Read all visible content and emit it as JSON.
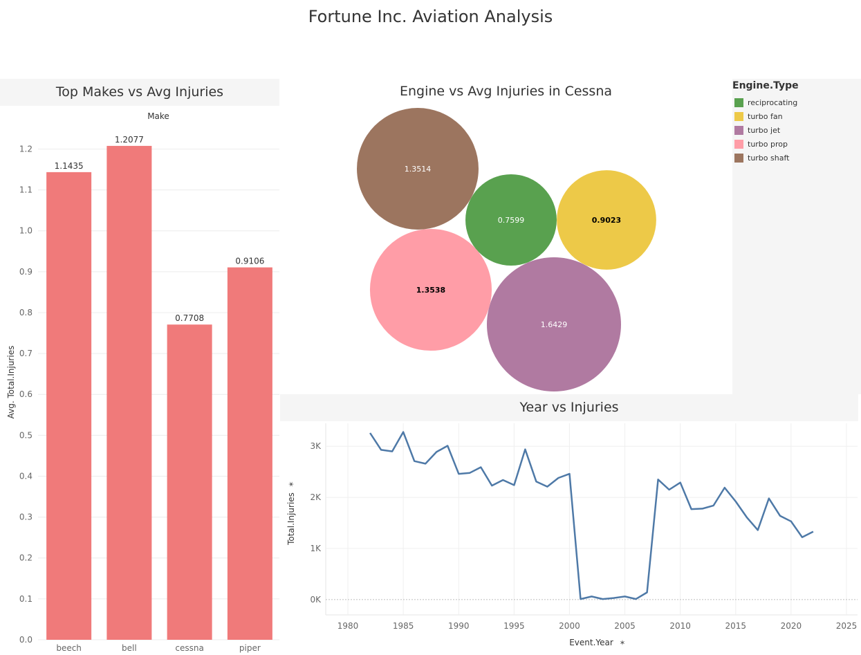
{
  "dashboard": {
    "title": "Fortune Inc. Aviation Analysis"
  },
  "chart_data": [
    {
      "type": "bar",
      "title": "Top Makes vs Avg Injuries",
      "column_header": "Make",
      "xlabel": "",
      "ylabel": "Avg. Total.Injuries",
      "categories": [
        "beech",
        "bell",
        "cessna",
        "piper"
      ],
      "values": [
        1.1435,
        1.2077,
        0.7708,
        0.9106
      ],
      "value_labels": [
        "1.1435",
        "1.2077",
        "0.7708",
        "0.9106"
      ],
      "ylim": [
        0,
        1.26
      ],
      "yticks": [
        0.0,
        0.1,
        0.2,
        0.3,
        0.4,
        0.5,
        0.6,
        0.7,
        0.8,
        0.9,
        1.0,
        1.1,
        1.2
      ],
      "ytick_labels": [
        "0.0",
        "0.1",
        "0.2",
        "0.3",
        "0.4",
        "0.5",
        "0.6",
        "0.7",
        "0.8",
        "0.9",
        "1.0",
        "1.1",
        "1.2"
      ],
      "color": "#f07a7a",
      "grid": true
    },
    {
      "type": "packed-bubble",
      "title": "Engine vs Avg Injuries in Cessna",
      "legend_title": "Engine.Type",
      "legend_position": "right",
      "series": [
        {
          "name": "reciprocating",
          "value": 0.7599,
          "label": "0.7599",
          "color": "#59a14f",
          "label_color": "#ffffff"
        },
        {
          "name": "turbo fan",
          "value": 0.9023,
          "label": "0.9023",
          "color": "#edc948",
          "label_color": "#000000"
        },
        {
          "name": "turbo jet",
          "value": 1.6429,
          "label": "1.6429",
          "color": "#b07aa1",
          "label_color": "#ffffff"
        },
        {
          "name": "turbo prop",
          "value": 1.3538,
          "label": "1.3538",
          "color": "#ff9da7",
          "label_color": "#000000"
        },
        {
          "name": "turbo shaft",
          "value": 1.3514,
          "label": "1.3514",
          "color": "#9c755f",
          "label_color": "#ffffff"
        }
      ]
    },
    {
      "type": "line",
      "title": "Year vs Injuries",
      "xlabel": "Event.Year",
      "ylabel": "Total.Injuries",
      "xlim": [
        1978,
        2026
      ],
      "ylim": [
        -300,
        3450
      ],
      "xticks": [
        1980,
        1985,
        1990,
        1995,
        2000,
        2005,
        2010,
        2015,
        2020,
        2025
      ],
      "xtick_labels": [
        "1980",
        "1985",
        "1990",
        "1995",
        "2000",
        "2005",
        "2010",
        "2015",
        "2020",
        "2025"
      ],
      "yticks": [
        0,
        1000,
        2000,
        3000
      ],
      "ytick_labels": [
        "0K",
        "1K",
        "2K",
        "3K"
      ],
      "color": "#4e79a7",
      "grid": true,
      "x": [
        1982,
        1983,
        1984,
        1985,
        1986,
        1987,
        1988,
        1989,
        1990,
        1991,
        1992,
        1993,
        1994,
        1995,
        1996,
        1997,
        1998,
        1999,
        2000,
        2001,
        2002,
        2003,
        2004,
        2005,
        2006,
        2007,
        2008,
        2009,
        2010,
        2011,
        2012,
        2013,
        2014,
        2015,
        2016,
        2017,
        2018,
        2019,
        2020,
        2021,
        2022
      ],
      "y": [
        3260,
        2930,
        2900,
        3280,
        2710,
        2660,
        2890,
        3010,
        2460,
        2480,
        2590,
        2230,
        2340,
        2240,
        2940,
        2310,
        2210,
        2380,
        2460,
        10,
        60,
        10,
        30,
        60,
        10,
        140,
        2350,
        2150,
        2290,
        1770,
        1780,
        1840,
        2190,
        1920,
        1610,
        1360,
        1980,
        1640,
        1530,
        1220,
        1330
      ]
    }
  ]
}
